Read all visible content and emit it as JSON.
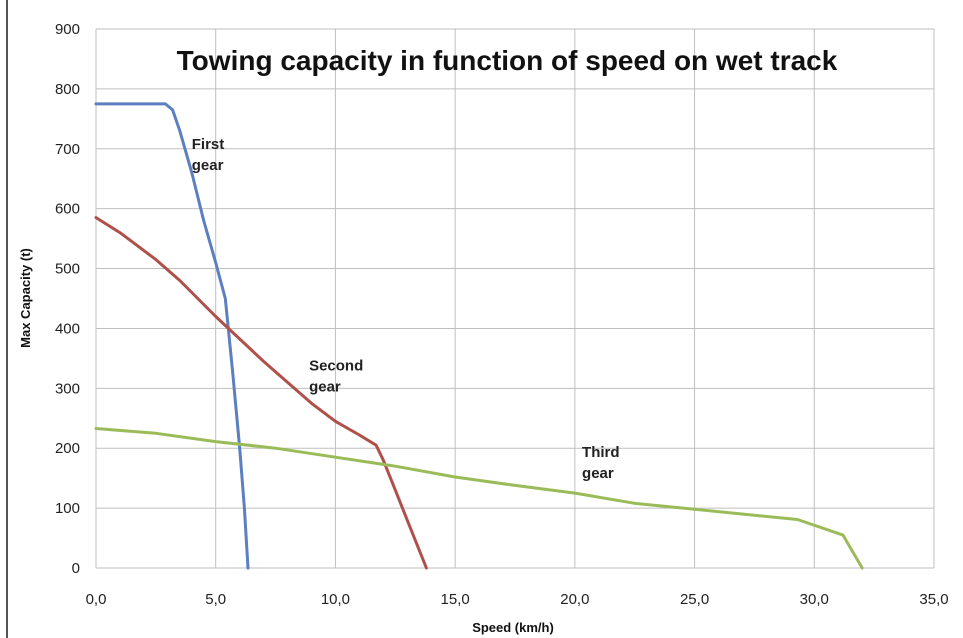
{
  "chart_data": {
    "type": "line",
    "title": "Towing capacity in function of speed on wet track",
    "xlabel": "Speed (km/h)",
    "ylabel": "Max Capacity (t)",
    "xlim": [
      0,
      35
    ],
    "ylim": [
      0,
      900
    ],
    "x_ticks": [
      0,
      5,
      10,
      15,
      20,
      25,
      30,
      35
    ],
    "x_tick_labels": [
      "0,0",
      "5,0",
      "10,0",
      "15,0",
      "20,0",
      "25,0",
      "30,0",
      "35,0"
    ],
    "y_ticks": [
      0,
      100,
      200,
      300,
      400,
      500,
      600,
      700,
      800,
      900
    ],
    "y_tick_labels": [
      "0",
      "100",
      "200",
      "300",
      "400",
      "500",
      "600",
      "700",
      "800",
      "900"
    ],
    "grid": true,
    "legend": "none",
    "series": [
      {
        "color": "#5b7fc0",
        "points": [
          [
            0,
            775
          ],
          [
            2.9,
            775
          ],
          [
            3.2,
            765
          ],
          [
            3.5,
            730
          ],
          [
            4.0,
            660
          ],
          [
            4.5,
            580
          ],
          [
            5.0,
            510
          ],
          [
            5.4,
            450
          ],
          [
            5.7,
            330
          ],
          [
            6.0,
            200
          ],
          [
            6.2,
            100
          ],
          [
            6.35,
            0
          ]
        ]
      },
      {
        "color": "#b0504a",
        "points": [
          [
            0,
            585
          ],
          [
            1.0,
            560
          ],
          [
            2.5,
            515
          ],
          [
            3.5,
            480
          ],
          [
            5.0,
            420
          ],
          [
            7.0,
            345
          ],
          [
            9.0,
            275
          ],
          [
            10.0,
            245
          ],
          [
            11.0,
            222
          ],
          [
            11.7,
            205
          ],
          [
            12.0,
            180
          ],
          [
            12.5,
            130
          ],
          [
            13.2,
            60
          ],
          [
            13.8,
            0
          ]
        ]
      },
      {
        "color": "#9bbb59",
        "points": [
          [
            0,
            233
          ],
          [
            2.5,
            225
          ],
          [
            5.0,
            211
          ],
          [
            7.5,
            200
          ],
          [
            10.0,
            185
          ],
          [
            12.5,
            170
          ],
          [
            15.0,
            152
          ],
          [
            17.5,
            138
          ],
          [
            20.0,
            125
          ],
          [
            22.5,
            108
          ],
          [
            25.0,
            98
          ],
          [
            27.5,
            88
          ],
          [
            29.3,
            81
          ],
          [
            31.2,
            55
          ],
          [
            32.0,
            0
          ]
        ]
      }
    ],
    "annotations": [
      {
        "lines": [
          "First",
          "gear"
        ],
        "x": 4.0,
        "y": 700
      },
      {
        "lines": [
          "Second",
          "gear"
        ],
        "x": 8.9,
        "y": 330
      },
      {
        "lines": [
          "Third",
          "gear"
        ],
        "x": 20.3,
        "y": 185
      }
    ]
  }
}
